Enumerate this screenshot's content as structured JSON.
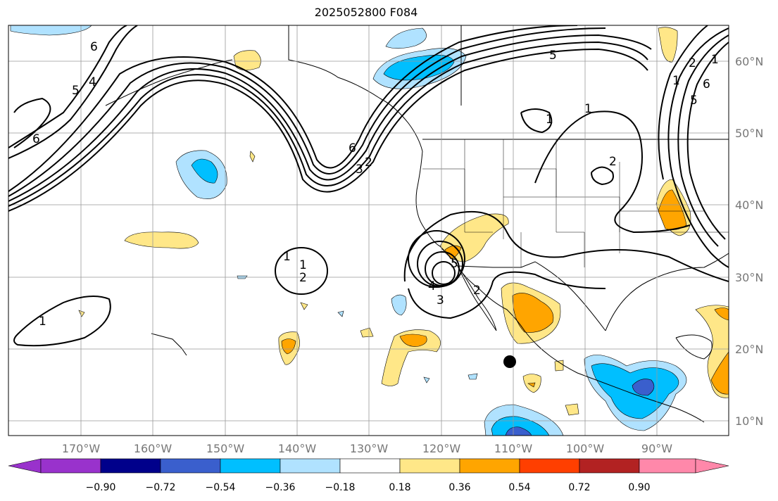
{
  "title": "2025052800 F084",
  "map": {
    "lat_labels": [
      "60°N",
      "50°N",
      "40°N",
      "30°N",
      "20°N",
      "10°N"
    ],
    "lon_labels": [
      "170°W",
      "160°W",
      "150°W",
      "140°W",
      "130°W",
      "120°W",
      "110°W",
      "100°W",
      "90°W"
    ],
    "contour_labels": [
      "6",
      "5",
      "4",
      "6",
      "5",
      "6",
      "3",
      "2",
      "1",
      "1",
      "1",
      "2",
      "1",
      "3",
      "4",
      "5",
      "2",
      "1",
      "2",
      "6",
      "5",
      "2",
      "1",
      "1"
    ],
    "storm_marker": "black-dot"
  },
  "colorbar": {
    "tick_labels": [
      "−0.90",
      "−0.72",
      "−0.54",
      "−0.36",
      "−0.18",
      "0.18",
      "0.36",
      "0.54",
      "0.72",
      "0.90"
    ],
    "colors": [
      "#9932cc",
      "#00008b",
      "#3a5fcd",
      "#00bfff",
      "#b0e2ff",
      "#ffffff",
      "#ffe788",
      "#ffa500",
      "#ff3f00",
      "#b22222",
      "#ff88aa"
    ]
  }
}
